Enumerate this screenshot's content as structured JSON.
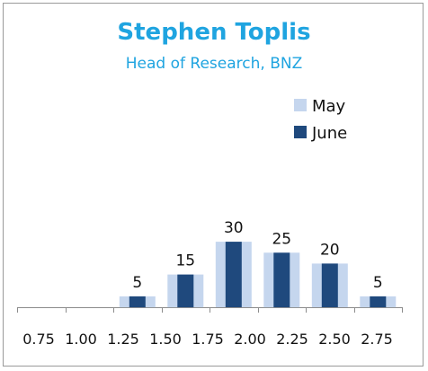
{
  "title": "Stephen Toplis",
  "subtitle": "Head of Research, BNZ",
  "chart_data": {
    "type": "bar",
    "categories": [
      "0.75",
      "1.00",
      "1.25",
      "1.50",
      "1.75",
      "2.00",
      "2.25",
      "2.50",
      "2.75"
    ],
    "series": [
      {
        "name": "May",
        "values": [
          0,
          0,
          5,
          15,
          30,
          25,
          20,
          5,
          0
        ],
        "color": "#c5d6ee"
      },
      {
        "name": "June",
        "values": [
          0,
          0,
          5,
          15,
          30,
          25,
          20,
          5,
          0
        ],
        "color": "#1f497d"
      }
    ],
    "data_labels": [
      "",
      "",
      "5",
      "15",
      "30",
      "25",
      "20",
      "5",
      ""
    ],
    "ylim": [
      0,
      100
    ],
    "grid": false,
    "legend_position": "top-right"
  }
}
